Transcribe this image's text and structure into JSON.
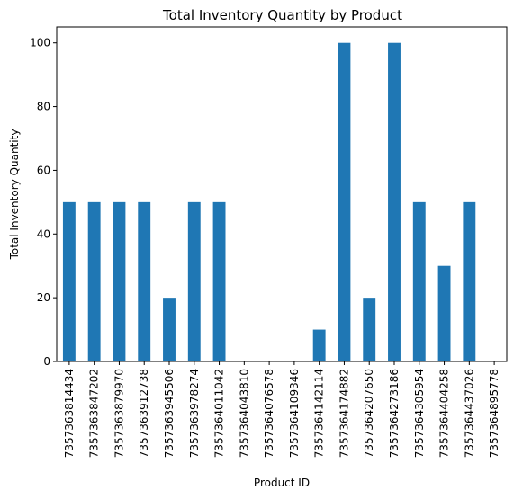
{
  "chart_data": {
    "type": "bar",
    "title": "Total Inventory Quantity by Product",
    "xlabel": "Product ID",
    "ylabel": "Total Inventory Quantity",
    "categories": [
      "7357363814434",
      "7357363847202",
      "7357363879970",
      "7357363912738",
      "7357363945506",
      "7357363978274",
      "7357364011042",
      "7357364043810",
      "7357364076578",
      "7357364109346",
      "7357364142114",
      "7357364174882",
      "7357364207650",
      "7357364273186",
      "7357364305954",
      "7357364404258",
      "7357364437026",
      "7357364895778"
    ],
    "values": [
      50,
      50,
      50,
      50,
      20,
      50,
      50,
      0,
      0,
      0,
      10,
      100,
      20,
      100,
      50,
      30,
      50,
      0
    ],
    "ylim": [
      0,
      105
    ],
    "yticks": [
      0,
      20,
      40,
      60,
      80,
      100
    ],
    "grid": false,
    "bar_color": "#1f77b4"
  }
}
